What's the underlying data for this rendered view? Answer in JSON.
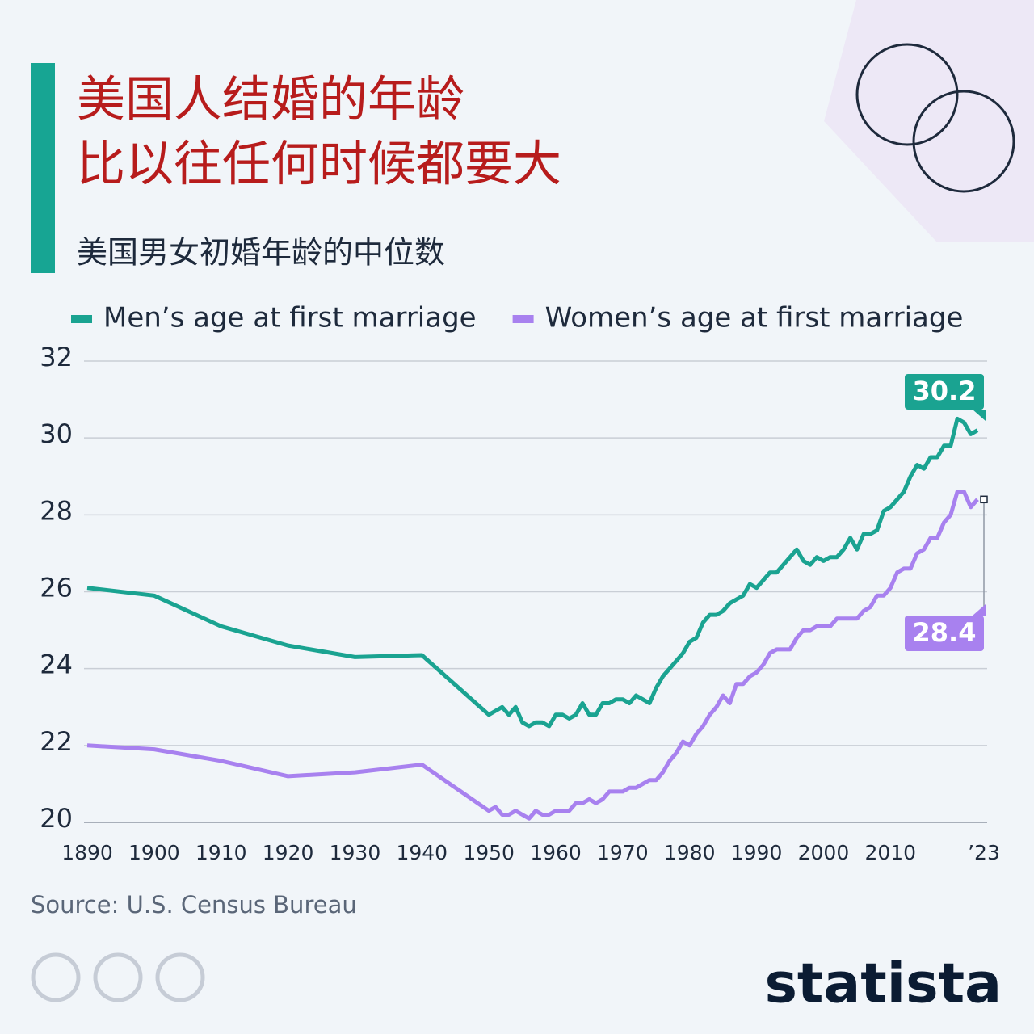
{
  "chart_data": {
    "type": "line",
    "title": [
      "美国人结婚的年龄",
      "比以往任何时候都要大"
    ],
    "subtitle": "美国男女初婚年龄的中位数",
    "source": "Source: U.S. Census Bureau",
    "brand": "statista",
    "x": [
      1890,
      1900,
      1910,
      1920,
      1930,
      1940,
      1950,
      1951,
      1952,
      1953,
      1954,
      1955,
      1956,
      1957,
      1958,
      1959,
      1960,
      1961,
      1962,
      1963,
      1964,
      1965,
      1966,
      1967,
      1968,
      1969,
      1970,
      1971,
      1972,
      1973,
      1974,
      1975,
      1976,
      1977,
      1978,
      1979,
      1980,
      1981,
      1982,
      1983,
      1984,
      1985,
      1986,
      1987,
      1988,
      1989,
      1990,
      1991,
      1992,
      1993,
      1994,
      1995,
      1996,
      1997,
      1998,
      1999,
      2000,
      2001,
      2002,
      2003,
      2004,
      2005,
      2006,
      2007,
      2008,
      2009,
      2010,
      2011,
      2012,
      2013,
      2014,
      2015,
      2016,
      2017,
      2018,
      2019,
      2020,
      2021,
      2022,
      2023
    ],
    "series": [
      {
        "name": "Men’s age at first marriage",
        "color": "#1aa391",
        "values": [
          26.1,
          25.9,
          25.1,
          24.6,
          24.3,
          24.35,
          22.8,
          22.9,
          23.0,
          22.8,
          23.0,
          22.6,
          22.5,
          22.6,
          22.6,
          22.5,
          22.8,
          22.8,
          22.7,
          22.8,
          23.1,
          22.8,
          22.8,
          23.1,
          23.1,
          23.2,
          23.2,
          23.1,
          23.3,
          23.2,
          23.1,
          23.5,
          23.8,
          24.0,
          24.2,
          24.4,
          24.7,
          24.8,
          25.2,
          25.4,
          25.4,
          25.5,
          25.7,
          25.8,
          25.9,
          26.2,
          26.1,
          26.3,
          26.5,
          26.5,
          26.7,
          26.9,
          27.1,
          26.8,
          26.7,
          26.9,
          26.8,
          26.9,
          26.9,
          27.1,
          27.4,
          27.1,
          27.5,
          27.5,
          27.6,
          28.1,
          28.2,
          28.4,
          28.6,
          29.0,
          29.3,
          29.2,
          29.5,
          29.5,
          29.8,
          29.8,
          30.5,
          30.4,
          30.1,
          30.2
        ]
      },
      {
        "name": "Women’s age at first marriage",
        "color": "#a881ef",
        "values": [
          22.0,
          21.9,
          21.6,
          21.2,
          21.3,
          21.5,
          20.3,
          20.4,
          20.2,
          20.2,
          20.3,
          20.2,
          20.1,
          20.3,
          20.2,
          20.2,
          20.3,
          20.3,
          20.3,
          20.5,
          20.5,
          20.6,
          20.5,
          20.6,
          20.8,
          20.8,
          20.8,
          20.9,
          20.9,
          21.0,
          21.1,
          21.1,
          21.3,
          21.6,
          21.8,
          22.1,
          22.0,
          22.3,
          22.5,
          22.8,
          23.0,
          23.3,
          23.1,
          23.6,
          23.6,
          23.8,
          23.9,
          24.1,
          24.4,
          24.5,
          24.5,
          24.5,
          24.8,
          25.0,
          25.0,
          25.1,
          25.1,
          25.1,
          25.3,
          25.3,
          25.3,
          25.3,
          25.5,
          25.6,
          25.9,
          25.9,
          26.1,
          26.5,
          26.6,
          26.6,
          27.0,
          27.1,
          27.4,
          27.4,
          27.8,
          28.0,
          28.6,
          28.6,
          28.2,
          28.4
        ]
      }
    ],
    "xlim": [
      1890,
      2023
    ],
    "xticks": [
      1890,
      1900,
      1910,
      1920,
      1930,
      1940,
      1950,
      1960,
      1970,
      1980,
      1990,
      2000,
      2010,
      {
        "value": 2023,
        "label": "’23"
      }
    ],
    "ylim": [
      20,
      32
    ],
    "yticks": [
      20,
      22,
      24,
      26,
      28,
      30,
      32
    ],
    "grid": true
  }
}
